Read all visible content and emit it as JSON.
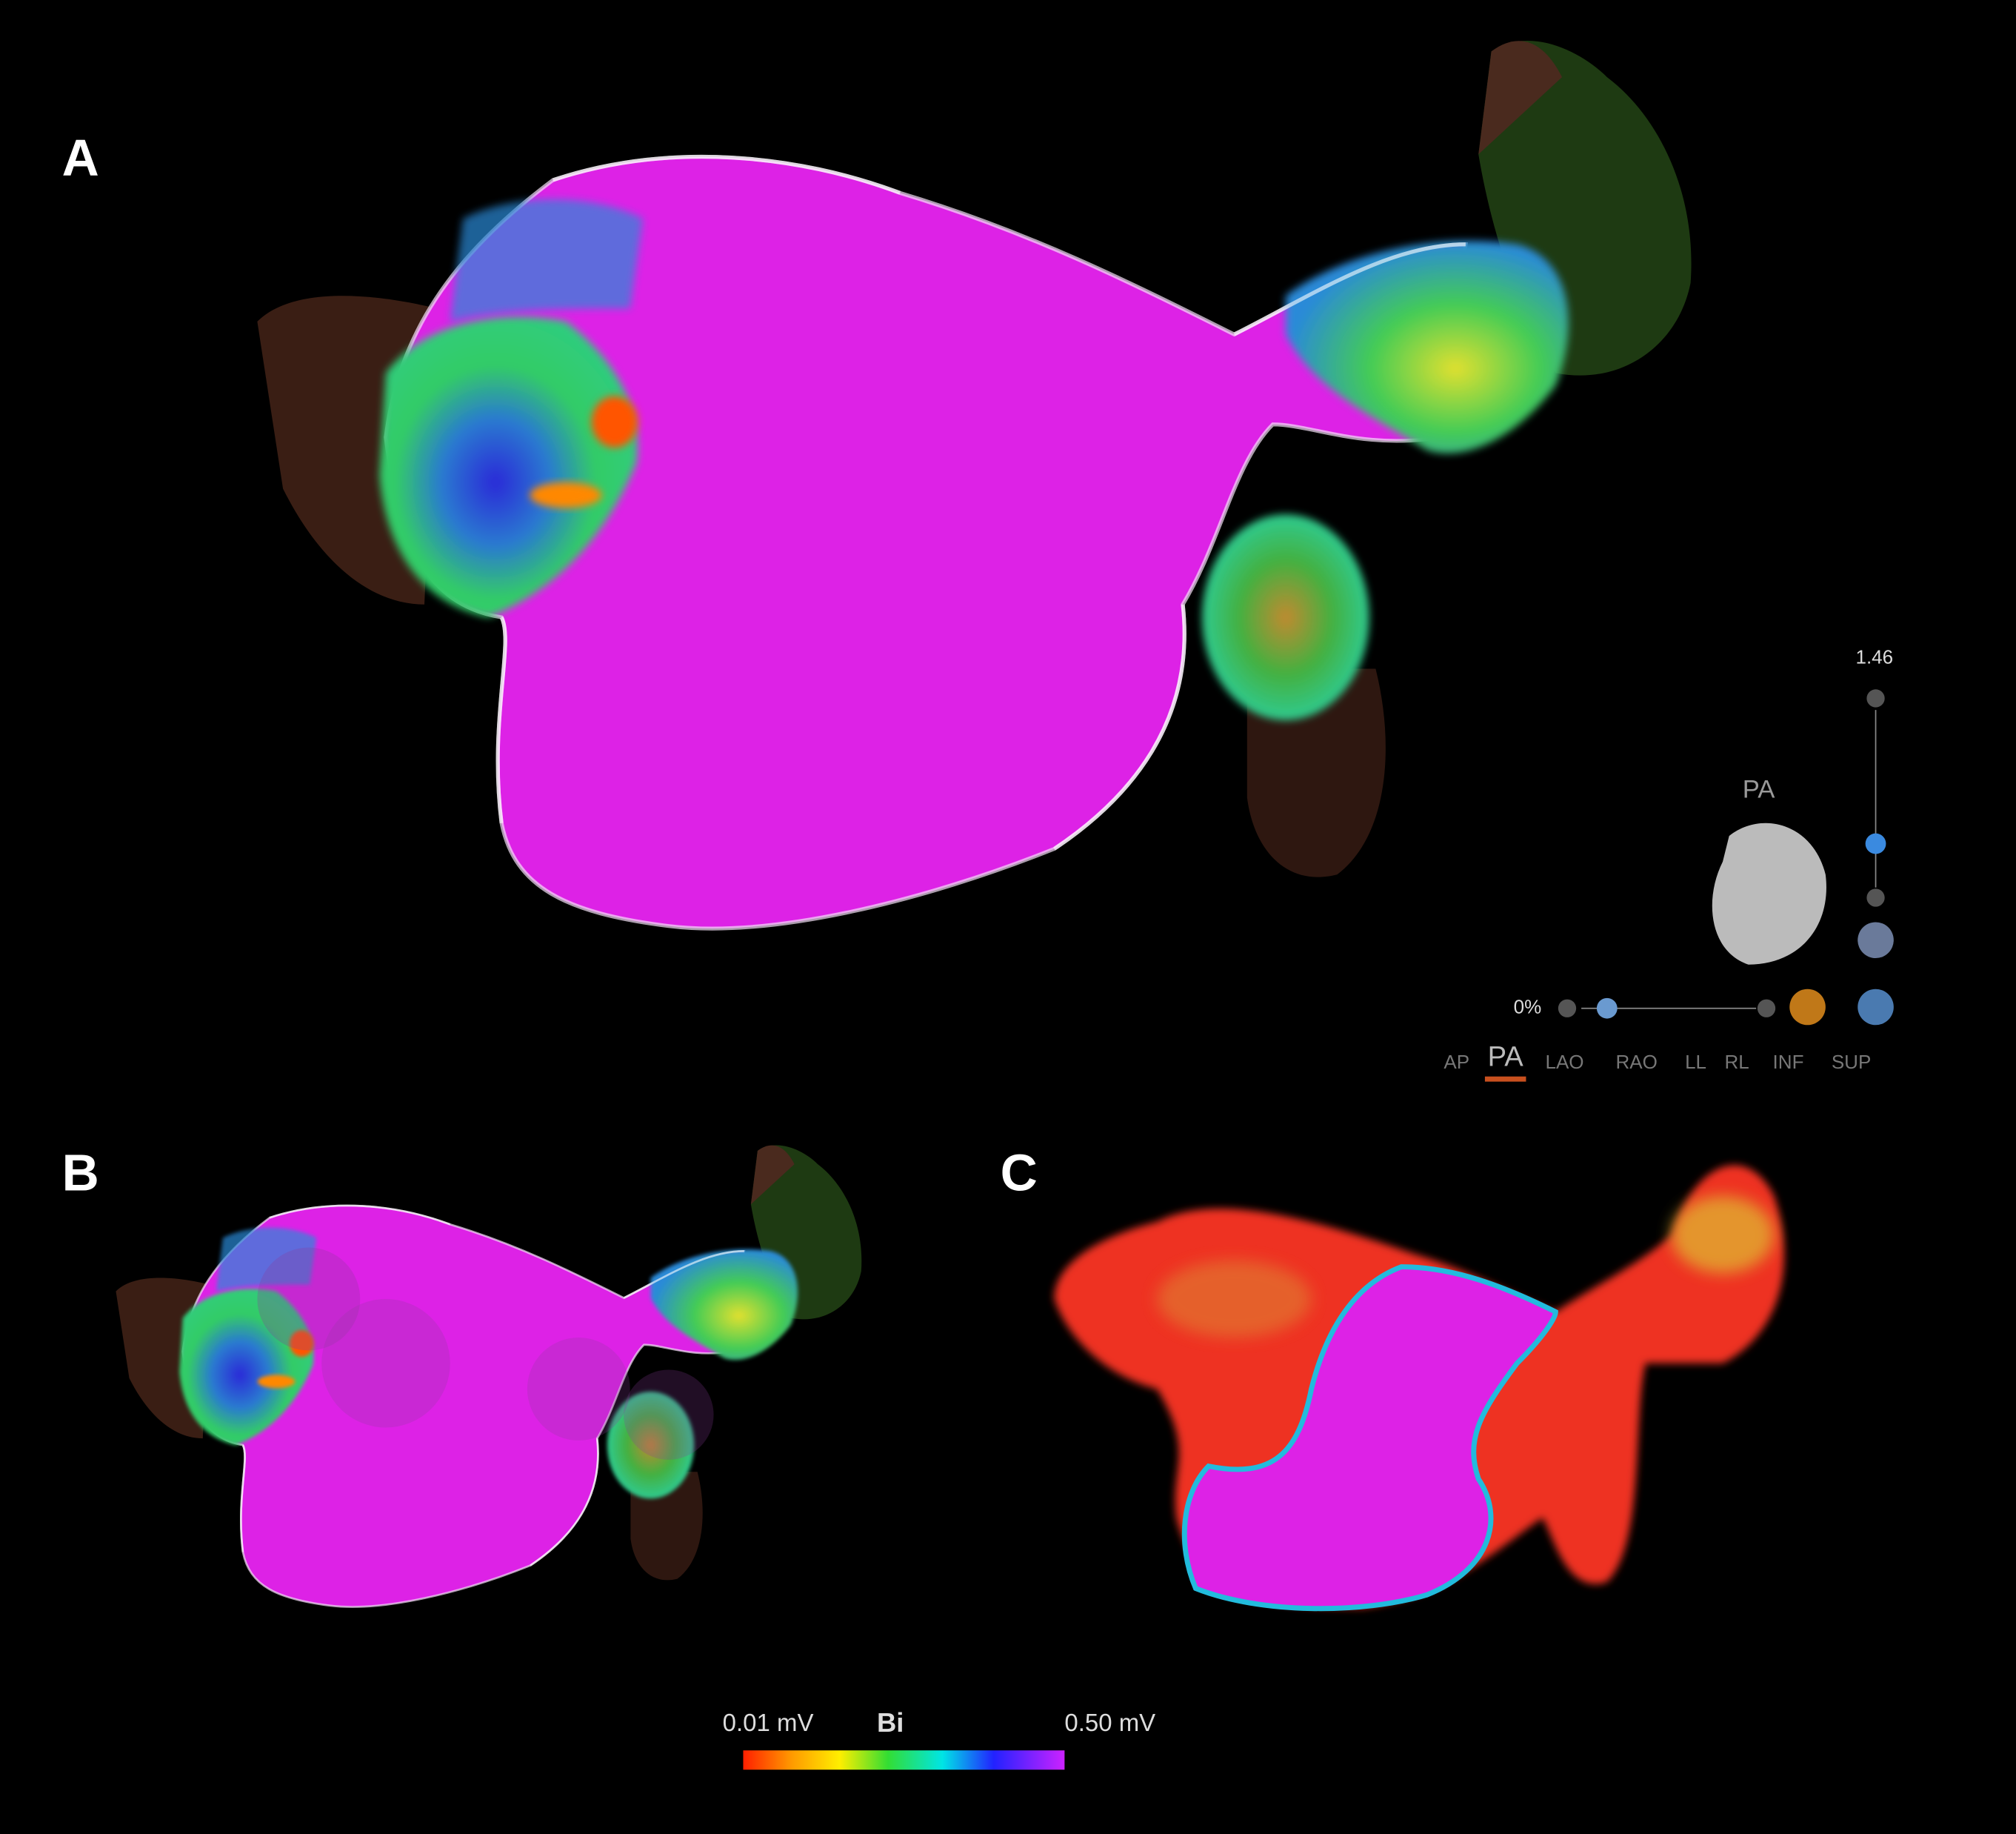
{
  "panels": [
    {
      "label": "A"
    },
    {
      "label": "B"
    },
    {
      "label": "C"
    }
  ],
  "viewer": {
    "zoom_value": "1.46",
    "orientation_label": "PA",
    "opacity_value": "0%",
    "views": [
      "AP",
      "PA",
      "LAO",
      "RAO",
      "LL",
      "RL",
      "INF",
      "SUP"
    ]
  },
  "colorbar": {
    "min_label": "0.01 mV",
    "title": "Bi",
    "max_label": "0.50 mV"
  }
}
